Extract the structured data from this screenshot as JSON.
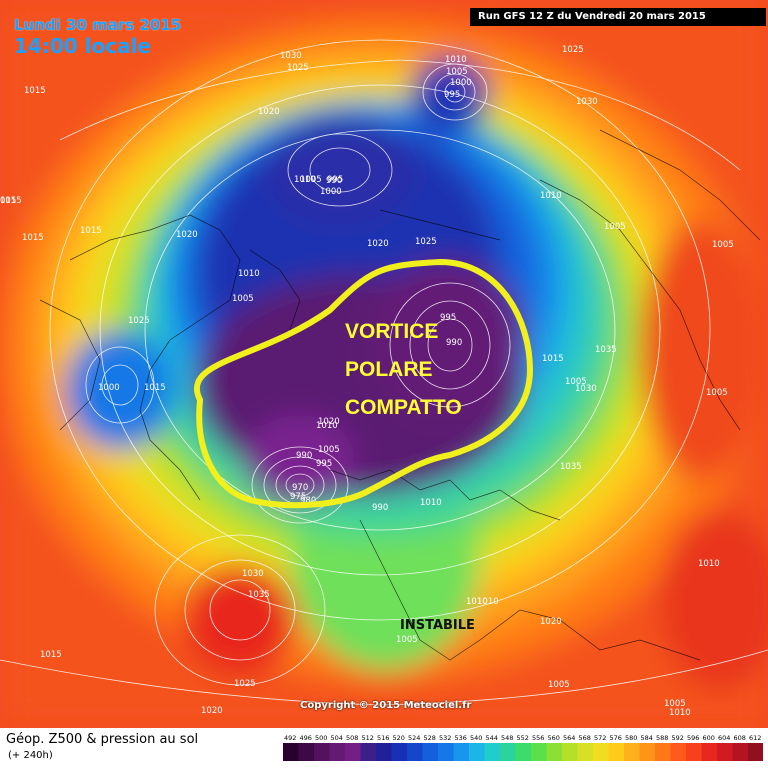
{
  "header": {
    "date": "Lundi 30 mars 2015",
    "time": "14:00 locale",
    "run": "Run GFS 12 Z du Vendredi 20 mars 2015"
  },
  "footer": {
    "product": "Géop. Z500 & pression au sol",
    "lead": "(+ 240h)",
    "copyright": "Copyright © 2015 Meteociel.fr"
  },
  "annotations": {
    "line1": "VORTICE",
    "line2": "POLARE",
    "line3": "COMPATTO",
    "region": "INSTABILE"
  },
  "legend": {
    "values": [
      "492",
      "496",
      "500",
      "504",
      "508",
      "512",
      "516",
      "520",
      "524",
      "528",
      "532",
      "536",
      "540",
      "544",
      "548",
      "552",
      "556",
      "560",
      "564",
      "568",
      "572",
      "576",
      "580",
      "584",
      "588",
      "592",
      "596",
      "600",
      "604",
      "608",
      "612"
    ],
    "colors": [
      "#2a0030",
      "#3d0a45",
      "#52125e",
      "#641a72",
      "#731f86",
      "#3c1f88",
      "#20209a",
      "#1830b4",
      "#1446cc",
      "#1460dc",
      "#1478e6",
      "#1896ee",
      "#1ab6e8",
      "#20cccc",
      "#2ad49c",
      "#3cdc6c",
      "#5ae048",
      "#8ce034",
      "#b4e028",
      "#d6e024",
      "#f0dc20",
      "#ffcc1c",
      "#ffb01a",
      "#ff9418",
      "#ff7818",
      "#ff5a1a",
      "#f8401c",
      "#e8281e",
      "#d01c20",
      "#b41420",
      "#901020"
    ]
  },
  "pressure_labels": [
    "1030",
    "1025",
    "1010",
    "1005",
    "1000",
    "995",
    "990",
    "1025",
    "1015",
    "1020",
    "1015",
    "1030",
    "1010",
    "1005",
    "995",
    "1000",
    "015",
    "1015",
    "1015",
    "1020",
    "1020",
    "1025",
    "1010",
    "1005",
    "1005",
    "1025",
    "1005",
    "995",
    "990",
    "1015",
    "1035",
    "1010",
    "1030",
    "1005",
    "1005",
    "1000",
    "1015",
    "1020",
    "1010",
    "990",
    "1005",
    "995",
    "970",
    "975",
    "980",
    "1010",
    "990",
    "1035",
    "1005",
    "1030",
    "1035",
    "1015",
    "1025",
    "1010",
    "1010",
    "1005",
    "1020",
    "1005",
    "1010",
    "1010",
    "1020"
  ]
}
